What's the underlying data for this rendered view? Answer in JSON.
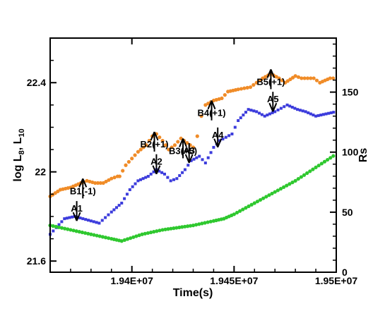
{
  "chart_data": {
    "type": "scatter",
    "xlabel": "Time(s)",
    "ylabel_left": "log L8, L10",
    "ylabel_right": "Rs",
    "xlim": [
      19360000,
      19500000
    ],
    "ylim_left": [
      21.55,
      22.6
    ],
    "ylim_right": [
      0,
      195
    ],
    "x_ticks": [
      {
        "value": 19400000,
        "label": "1.94E+07"
      },
      {
        "value": 19450000,
        "label": "1.945E+07"
      },
      {
        "value": 19500000,
        "label": "1.95E+07"
      }
    ],
    "y_ticks_left": [
      {
        "value": 21.6,
        "label": "21.6"
      },
      {
        "value": 22.0,
        "label": "22"
      },
      {
        "value": 22.4,
        "label": "22.4"
      }
    ],
    "y_ticks_right": [
      {
        "value": 0,
        "label": "0"
      },
      {
        "value": 50,
        "label": "50"
      },
      {
        "value": 100,
        "label": "100"
      },
      {
        "value": 150,
        "label": "150"
      }
    ],
    "grid": false,
    "series": [
      {
        "color": "#f08c28",
        "axis": "left",
        "points": [
          [
            19360000,
            21.89
          ],
          [
            19365000,
            21.92
          ],
          [
            19370000,
            21.93
          ],
          [
            19375000,
            21.95
          ],
          [
            19378000,
            21.96
          ],
          [
            19382000,
            21.95
          ],
          [
            19386000,
            21.95
          ],
          [
            19390000,
            21.97
          ],
          [
            19393000,
            21.98
          ],
          [
            19394000,
            21.98
          ],
          [
            19397000,
            22.03
          ],
          [
            19400000,
            22.06
          ],
          [
            19403000,
            22.09
          ],
          [
            19407000,
            22.12
          ],
          [
            19410000,
            22.16
          ],
          [
            19412000,
            22.17
          ],
          [
            19415000,
            22.14
          ],
          [
            19418000,
            22.1
          ],
          [
            19421000,
            22.12
          ],
          [
            19424000,
            22.15
          ],
          [
            19427000,
            22.13
          ],
          [
            19430000,
            22.11
          ],
          [
            19432000,
            22.16
          ],
          [
            19434000,
            22.25
          ],
          [
            19436000,
            22.3
          ],
          [
            19440000,
            22.32
          ],
          [
            19444000,
            22.33
          ],
          [
            19447000,
            22.36
          ],
          [
            19452000,
            22.37
          ],
          [
            19458000,
            22.38
          ],
          [
            19464000,
            22.42
          ],
          [
            19468000,
            22.44
          ],
          [
            19472000,
            22.42
          ],
          [
            19475000,
            22.4
          ],
          [
            19480000,
            22.43
          ],
          [
            19483000,
            22.42
          ],
          [
            19489000,
            22.42
          ],
          [
            19492000,
            22.4
          ],
          [
            19497000,
            22.42
          ],
          [
            19500000,
            22.42
          ]
        ]
      },
      {
        "color": "#3c3cdc",
        "axis": "left",
        "points": [
          [
            19360000,
            21.72
          ],
          [
            19363000,
            21.75
          ],
          [
            19367000,
            21.79
          ],
          [
            19372000,
            21.8
          ],
          [
            19376000,
            21.79
          ],
          [
            19380000,
            21.78
          ],
          [
            19384000,
            21.77
          ],
          [
            19390000,
            21.82
          ],
          [
            19395000,
            21.86
          ],
          [
            19399000,
            21.92
          ],
          [
            19403000,
            21.96
          ],
          [
            19408000,
            21.98
          ],
          [
            19412000,
            22.01
          ],
          [
            19416000,
            21.99
          ],
          [
            19419000,
            21.96
          ],
          [
            19422000,
            21.97
          ],
          [
            19426000,
            22.01
          ],
          [
            19429000,
            22.05
          ],
          [
            19433000,
            22.07
          ],
          [
            19436000,
            22.04
          ],
          [
            19440000,
            22.11
          ],
          [
            19443000,
            22.14
          ],
          [
            19449000,
            22.17
          ],
          [
            19452000,
            22.23
          ],
          [
            19457000,
            22.28
          ],
          [
            19461000,
            22.27
          ],
          [
            19465000,
            22.25
          ],
          [
            19470000,
            22.27
          ],
          [
            19476000,
            22.3
          ],
          [
            19481000,
            22.28
          ],
          [
            19485000,
            22.27
          ],
          [
            19490000,
            22.25
          ],
          [
            19495000,
            22.26
          ],
          [
            19500000,
            22.27
          ]
        ]
      },
      {
        "color": "#2fc82f",
        "axis": "left",
        "points": [
          [
            19360000,
            21.76
          ],
          [
            19370000,
            21.74
          ],
          [
            19380000,
            21.72
          ],
          [
            19390000,
            21.7
          ],
          [
            19395000,
            21.69
          ],
          [
            19405000,
            21.72
          ],
          [
            19415000,
            21.74
          ],
          [
            19430000,
            21.76
          ],
          [
            19440000,
            21.78
          ],
          [
            19445000,
            21.79
          ],
          [
            19450000,
            21.81
          ],
          [
            19460000,
            21.86
          ],
          [
            19470000,
            21.91
          ],
          [
            19480000,
            21.96
          ],
          [
            19490000,
            22.02
          ],
          [
            19500000,
            22.08
          ]
        ]
      }
    ],
    "annotations": [
      {
        "label": "B1(-1)",
        "direction": "down",
        "x": 19376000,
        "y_tip": 21.96
      },
      {
        "label": "B2(+1)",
        "direction": "down",
        "x": 19411000,
        "y_tip": 22.17
      },
      {
        "label": "B3(+5)",
        "direction": "down",
        "x": 19425000,
        "y_tip": 22.14
      },
      {
        "label": "B4(+1)",
        "direction": "down",
        "x": 19439000,
        "y_tip": 22.31
      },
      {
        "label": "B5(+1)",
        "direction": "down",
        "x": 19468000,
        "y_tip": 22.45
      },
      {
        "label": "A1",
        "direction": "up",
        "x": 19373000,
        "y_tip": 21.79
      },
      {
        "label": "A2",
        "direction": "up",
        "x": 19412000,
        "y_tip": 22.0
      },
      {
        "label": "A3",
        "direction": "up",
        "x": 19428000,
        "y_tip": 22.05
      },
      {
        "label": "A4",
        "direction": "up",
        "x": 19442000,
        "y_tip": 22.12
      },
      {
        "label": "A5",
        "direction": "up",
        "x": 19469000,
        "y_tip": 22.28
      }
    ]
  }
}
